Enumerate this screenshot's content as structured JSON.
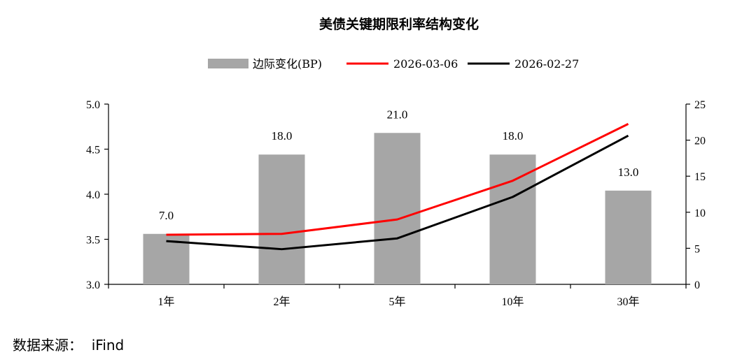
{
  "source": "数据来源：  iFind",
  "chart_data": {
    "type": "bar+line",
    "title": "美债关键期限利率结构变化",
    "categories": [
      "1年",
      "2年",
      "5年",
      "10年",
      "30年"
    ],
    "bar_series": {
      "name": "边际变化(BP)",
      "axis": "right",
      "values": [
        7.0,
        18.0,
        21.0,
        18.0,
        13.0
      ],
      "labels": [
        "7.0",
        "18.0",
        "21.0",
        "18.0",
        "13.0"
      ],
      "color": "#a6a6a6"
    },
    "line_series": [
      {
        "name": "2026-03-06",
        "axis": "left",
        "color": "#ff0000",
        "values": [
          3.55,
          3.56,
          3.72,
          4.15,
          4.78
        ]
      },
      {
        "name": "2026-02-27",
        "axis": "left",
        "color": "#000000",
        "values": [
          3.48,
          3.39,
          3.51,
          3.97,
          4.65
        ]
      }
    ],
    "y_left": {
      "min": 3.0,
      "max": 5.0,
      "step": 0.5,
      "ticks": [
        "3.0",
        "3.5",
        "4.0",
        "4.5",
        "5.0"
      ]
    },
    "y_right": {
      "min": 0,
      "max": 25,
      "step": 5,
      "ticks": [
        "0",
        "5",
        "10",
        "15",
        "20",
        "25"
      ]
    },
    "grid": false,
    "legend_position": "top-center"
  }
}
